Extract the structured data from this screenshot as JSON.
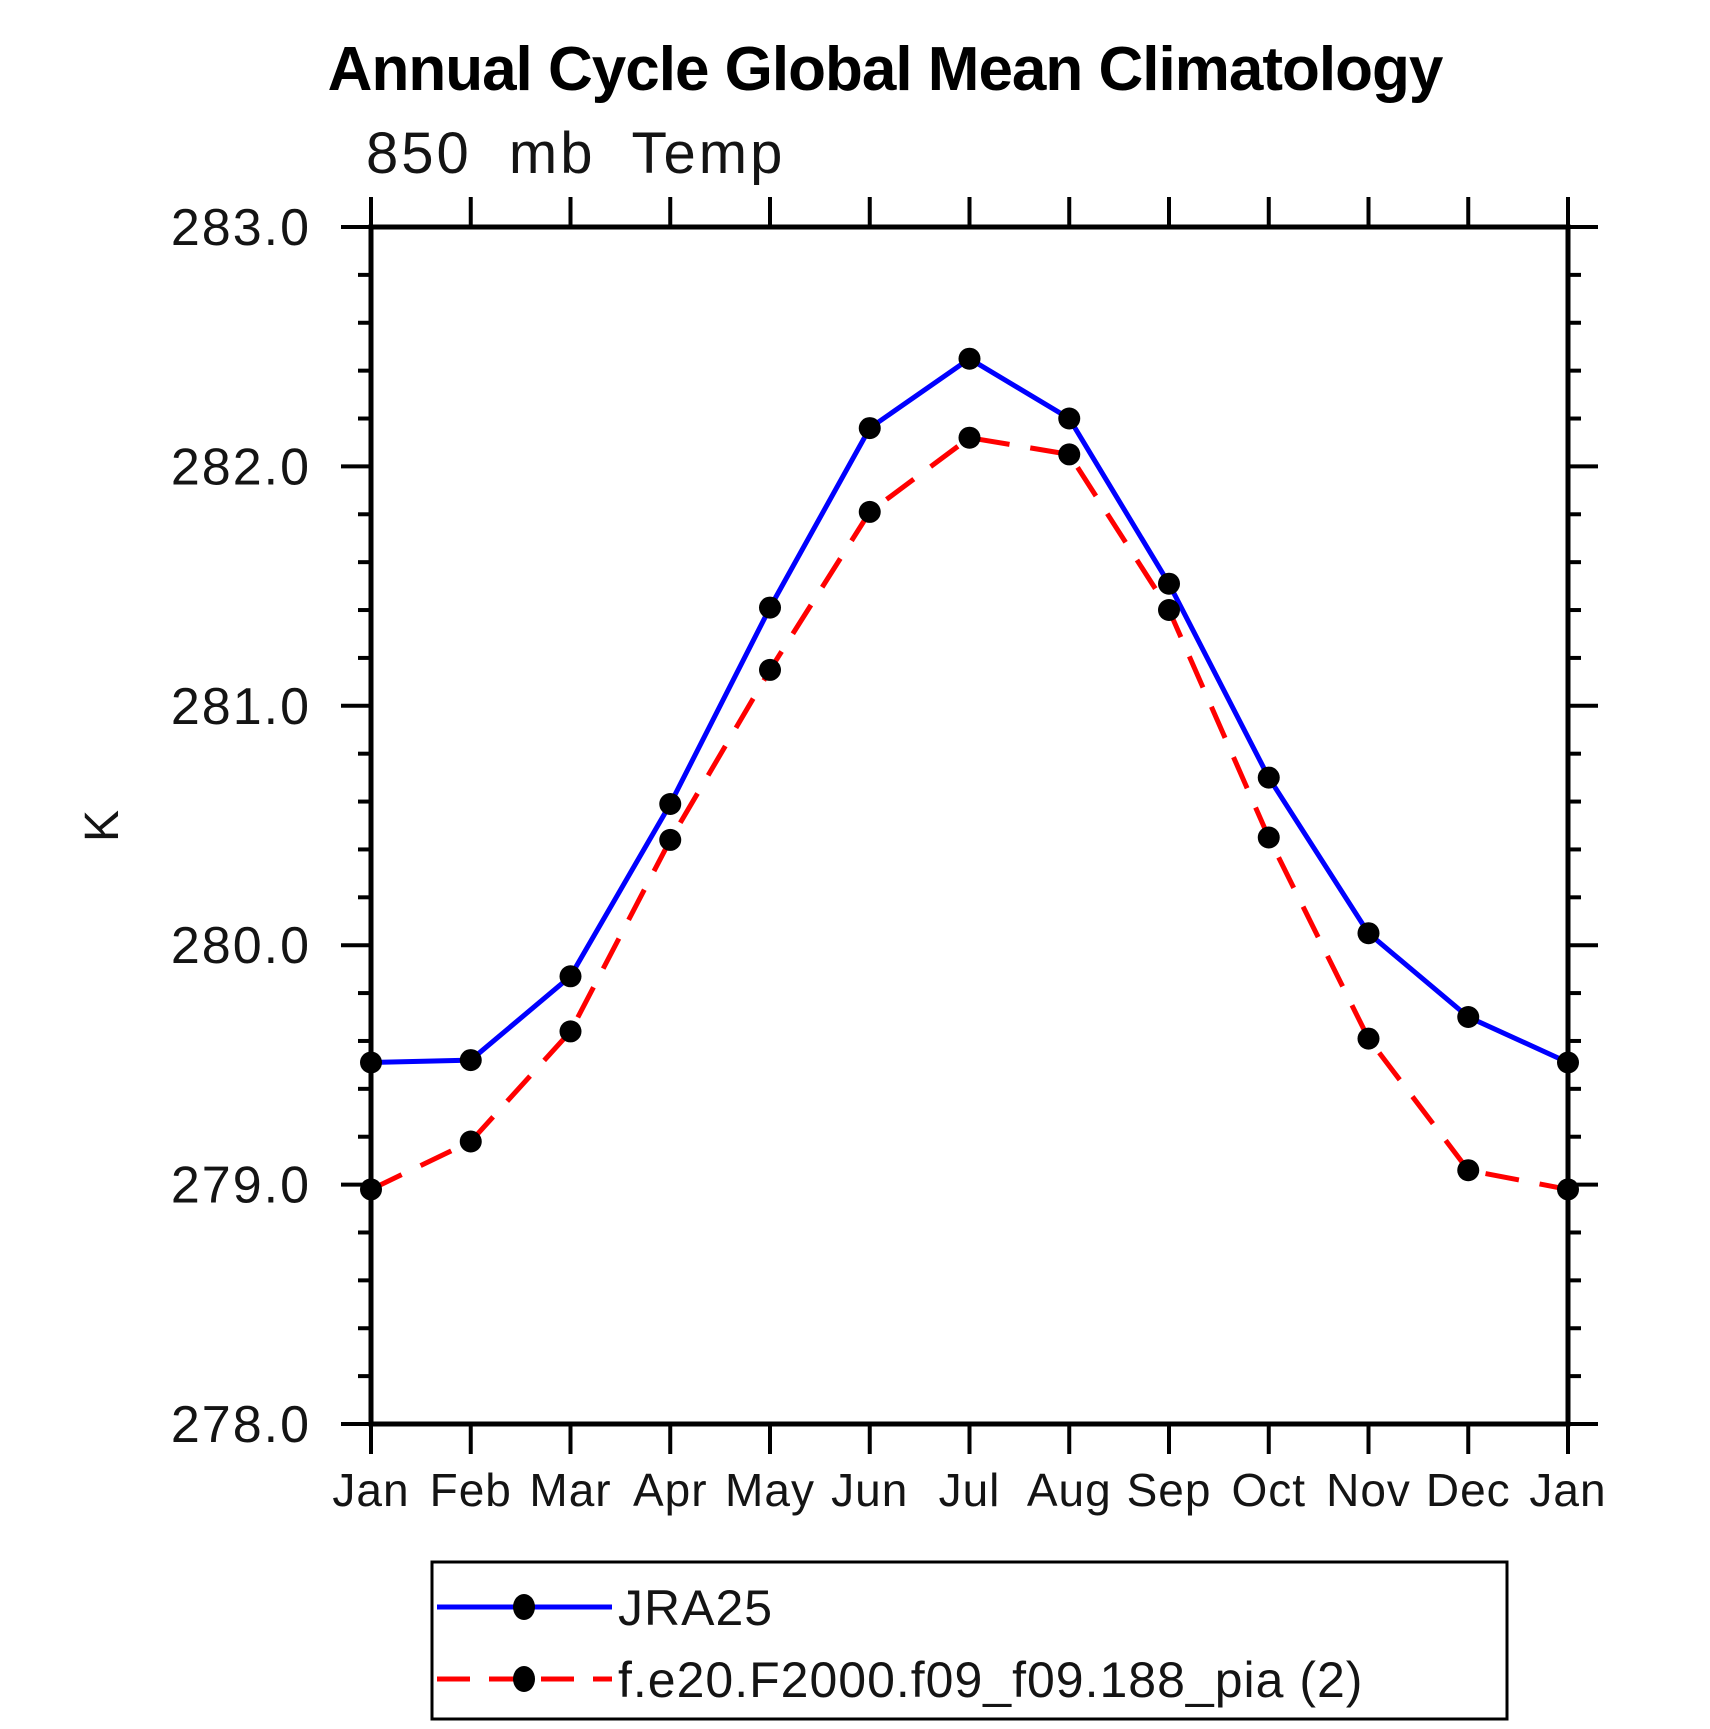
{
  "header": {
    "title": "Annual Cycle Global Mean Climatology",
    "subtitle": "850 mb Temp"
  },
  "chart_data": {
    "type": "line",
    "title": "Annual Cycle Global Mean Climatology",
    "subtitle": "850 mb Temp",
    "xlabel": "",
    "ylabel": "K",
    "categories": [
      "Jan",
      "Feb",
      "Mar",
      "Apr",
      "May",
      "Jun",
      "Jul",
      "Aug",
      "Sep",
      "Oct",
      "Nov",
      "Dec",
      "Jan"
    ],
    "ylim": [
      278.0,
      283.0
    ],
    "yticks": [
      283.0,
      282.0,
      281.0,
      280.0,
      279.0,
      278.0
    ],
    "ytick_labels": [
      "283.0",
      "282.0",
      "281.0",
      "280.0",
      "279.0",
      "278.0"
    ],
    "minor_tick_step": 0.2,
    "grid": false,
    "legend_position": "bottom-left",
    "axis_color": "#000000",
    "series": [
      {
        "name": "JRA25",
        "color": "#0000ff",
        "line_style": "solid",
        "marker": "filled-circle",
        "marker_color": "#000000",
        "values": [
          279.51,
          279.52,
          279.87,
          280.59,
          281.41,
          282.16,
          282.45,
          282.2,
          281.51,
          280.7,
          280.05,
          279.7,
          279.51
        ]
      },
      {
        "name": "f.e20.F2000.f09_f09.188_pia (2)",
        "color": "#ff0000",
        "line_style": "dashed",
        "marker": "filled-circle",
        "marker_color": "#000000",
        "values": [
          278.98,
          279.18,
          279.64,
          280.44,
          281.15,
          281.81,
          282.12,
          282.05,
          281.4,
          280.45,
          279.61,
          279.06,
          278.98
        ]
      }
    ]
  }
}
